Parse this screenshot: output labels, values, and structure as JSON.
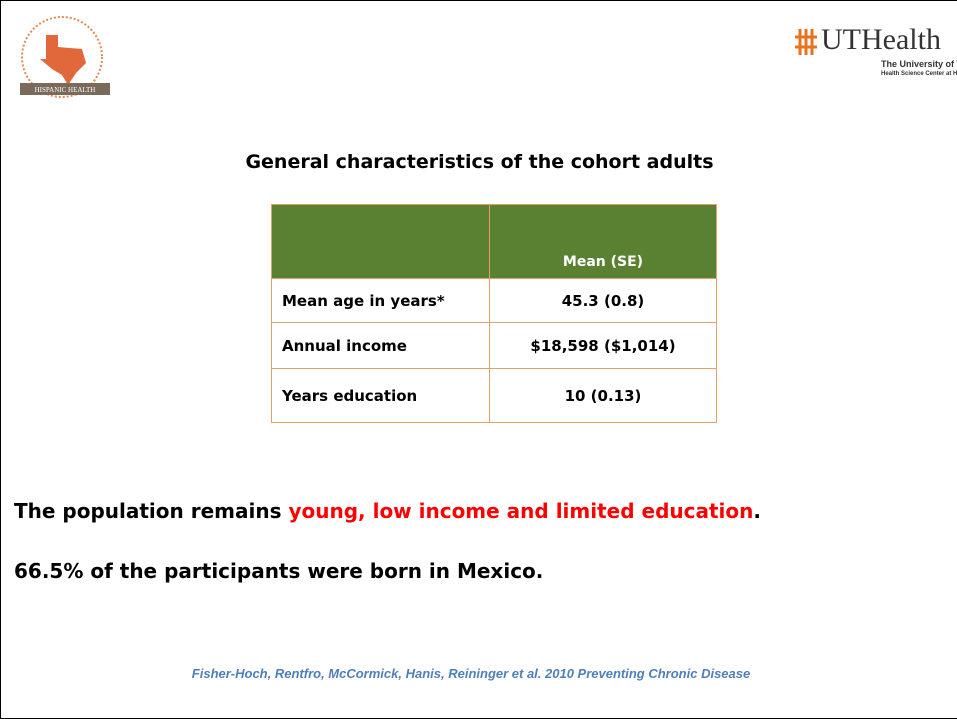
{
  "logo_left": {
    "text": "HISPANIC HEALTH"
  },
  "logo_right": {
    "name": "UTHealth",
    "line1": "The University of Texas",
    "line2": "Health Science Center at Houston"
  },
  "title": "General characteristics of the cohort adults",
  "table": {
    "header": "Mean (SE)",
    "rows": [
      [
        "Mean age in years*",
        "45.3 (0.8)"
      ],
      [
        "Annual income",
        "$18,598 ($1,014)"
      ],
      [
        "Years education",
        "10 (0.13)"
      ]
    ]
  },
  "statement": {
    "lead": "The population remains ",
    "highlight": "young, low income and limited education",
    "end": "."
  },
  "note": "66.5% of the participants were born in Mexico.",
  "citation": "Fisher-Hoch, Rentfro, McCormick, Hanis, Reininger et al. 2010 Preventing Chronic Disease"
}
